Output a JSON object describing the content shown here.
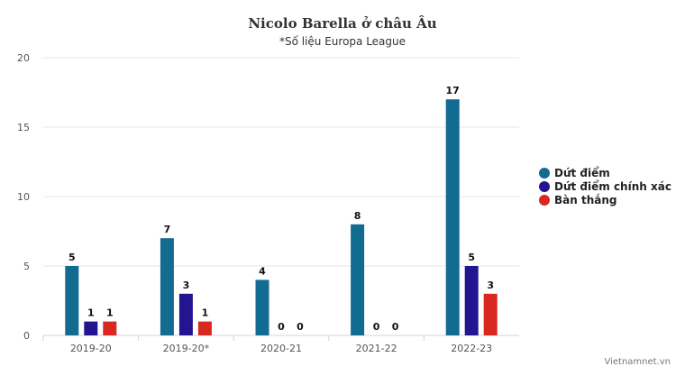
{
  "chart_data": {
    "type": "bar",
    "title": "Nicolo Barella ở châu Âu",
    "subtitle": "*Số liệu Europa League",
    "categories": [
      "2019-20",
      "2019-20*",
      "2020-21",
      "2021-22",
      "2022-23"
    ],
    "series": [
      {
        "name": "Dứt điểm",
        "color": "#126b91",
        "values": [
          5,
          7,
          4,
          8,
          17
        ]
      },
      {
        "name": "Dứt điểm chính xác",
        "color": "#22158f",
        "values": [
          1,
          3,
          0,
          0,
          5
        ]
      },
      {
        "name": "Bàn thắng",
        "color": "#d8281f",
        "values": [
          1,
          1,
          0,
          0,
          3
        ]
      }
    ],
    "ylim": [
      0,
      20
    ],
    "yticks": [
      0,
      5,
      10,
      15,
      20
    ],
    "grid": true,
    "legend": "right",
    "xlabel": "",
    "ylabel": ""
  },
  "credit": "Vietnamnet.vn"
}
